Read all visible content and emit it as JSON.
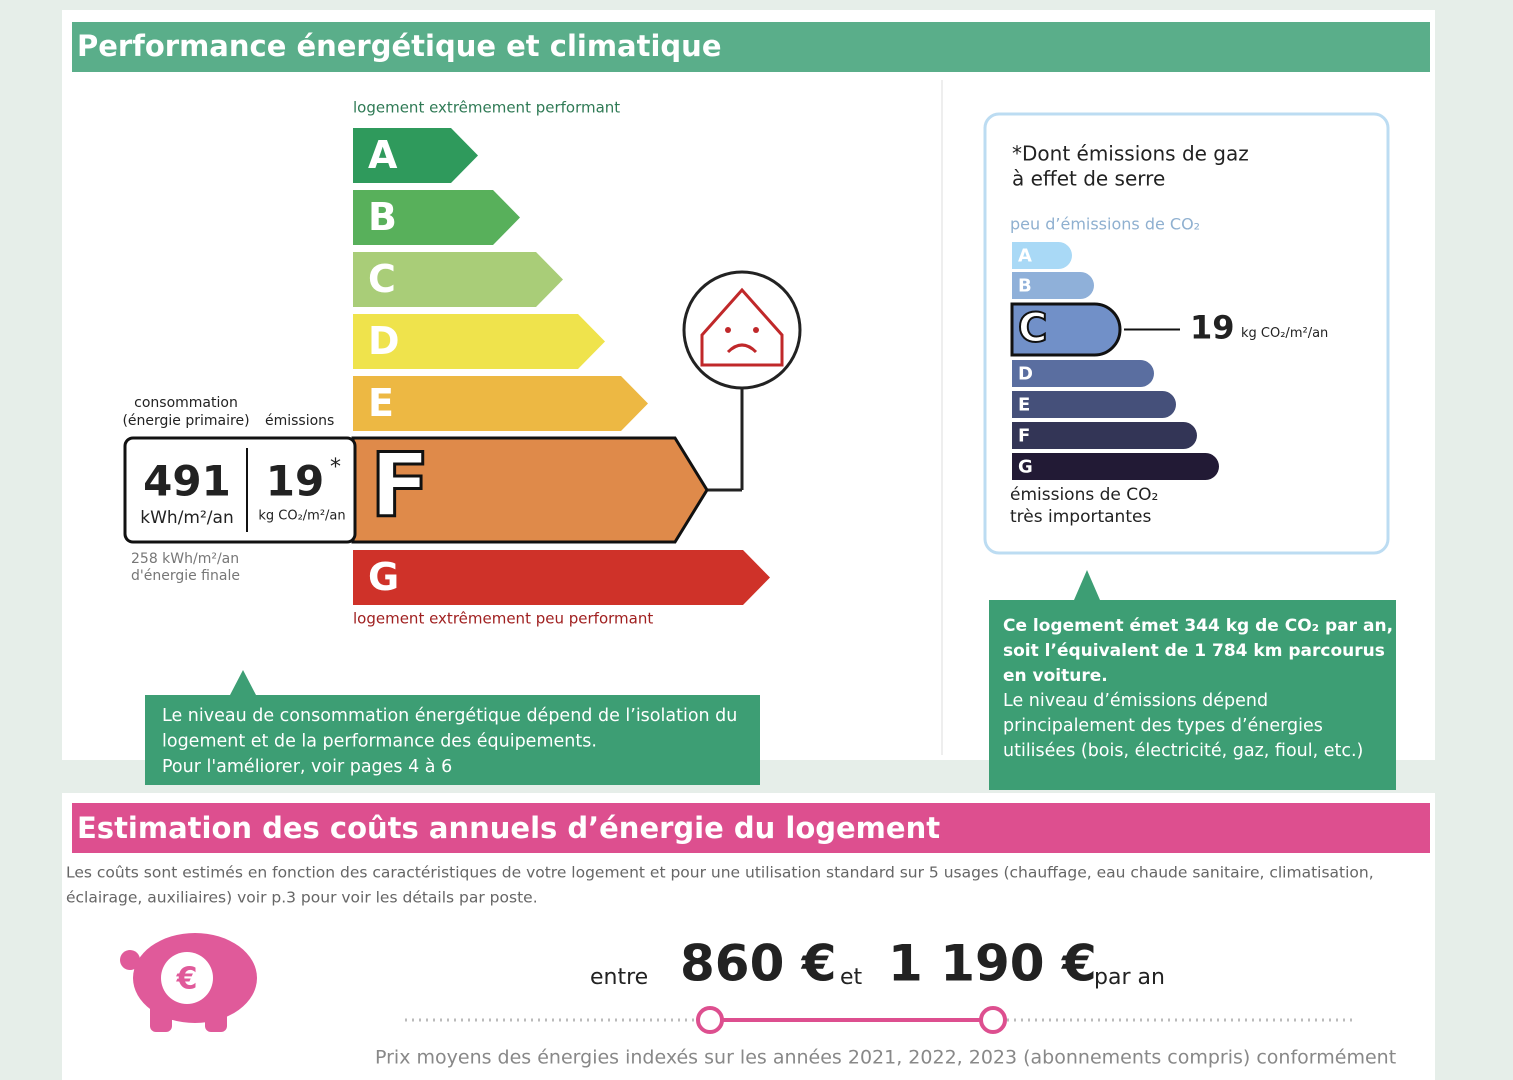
{
  "section1": {
    "title": "Performance énergétique et climatique",
    "energy": {
      "top_label": "logement extrêmement performant",
      "bottom_label": "logement extrêmement peu performant",
      "classes": [
        "A",
        "B",
        "C",
        "D",
        "E",
        "F",
        "G"
      ],
      "colors": [
        "#2f9a5c",
        "#58b05b",
        "#a9cd78",
        "#efe34c",
        "#edb843",
        "#df8a4a",
        "#cf3229"
      ],
      "current_class": "F",
      "consumption_label": [
        "consommation",
        "(énergie primaire)"
      ],
      "emissions_label": "émissions",
      "consumption_value": "491",
      "consumption_unit": "kWh/m²/an",
      "emissions_value": "19",
      "asterisk": "*",
      "emissions_unit": "kg CO₂/m²/an",
      "final_energy": [
        "258 kWh/m²/an",
        "d'énergie finale"
      ],
      "note": [
        "Le niveau de consommation énergétique dépend de l’isolation du",
        "logement et de la performance des équipements.",
        "Pour l'améliorer, voir pages 4 à 6"
      ]
    },
    "ges": {
      "title": [
        "*Dont émissions de gaz",
        "à effet de serre"
      ],
      "top_label": "peu d’émissions de CO₂",
      "classes": [
        "A",
        "B",
        "C",
        "D",
        "E",
        "F",
        "G"
      ],
      "colors": [
        "#a9d9f6",
        "#8fb0d9",
        "#7190c8",
        "#5a6ea0",
        "#45507a",
        "#333556",
        "#221a35"
      ],
      "current_class": "C",
      "value": "19",
      "unit": "kg CO₂/m²/an",
      "bottom_label": [
        "émissions de CO₂",
        "très importantes"
      ],
      "note_bold": [
        "Ce logement émet 344 kg de CO₂ par an,",
        "soit l’équivalent de 1 784 km parcourus",
        "en voiture."
      ],
      "note": [
        "Le niveau d’émissions dépend",
        "principalement des types d’énergies",
        "utilisées (bois, électricité, gaz, fioul, etc.)"
      ]
    }
  },
  "section2": {
    "title": "Estimation des coûts annuels d’énergie du logement",
    "intro": [
      "Les coûts sont estimés en fonction des caractéristiques de votre logement et pour une utilisation standard sur 5 usages (chauffage, eau chaude sanitaire, climatisation,",
      "éclairage, auxiliaires) voir p.3 pour voir les détails par poste."
    ],
    "costs": {
      "prefix": "entre",
      "low": "860 €",
      "middle": "et",
      "high": "1 190 €",
      "suffix": "par an"
    },
    "footnote": "Prix moyens des énergies indexés sur les années 2021, 2022, 2023 (abonnements compris) conformément"
  }
}
